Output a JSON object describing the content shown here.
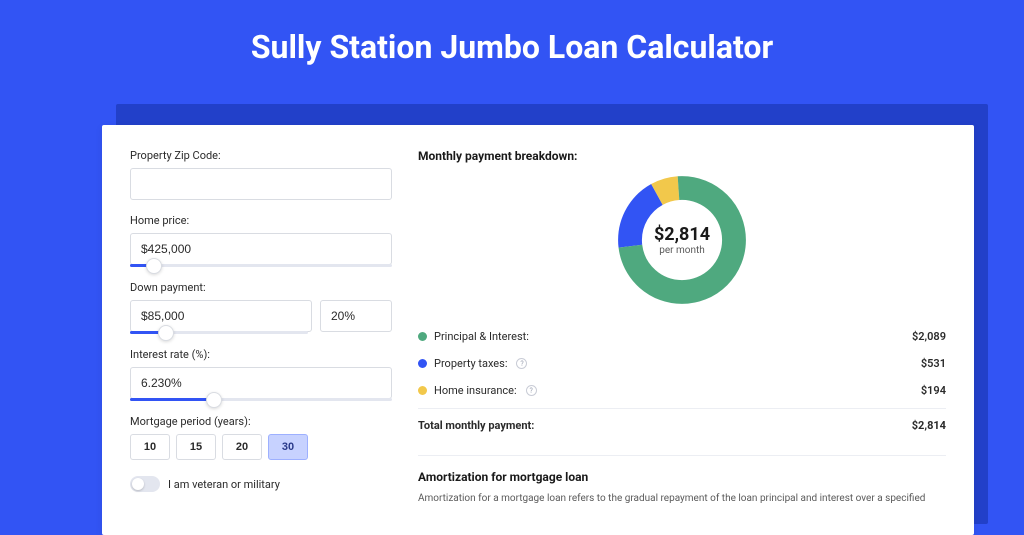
{
  "page": {
    "title": "Sully Station Jumbo Loan Calculator",
    "background_color": "#3254f4",
    "shadow_color": "#2240c9"
  },
  "form": {
    "zip": {
      "label": "Property Zip Code:",
      "value": ""
    },
    "home_price": {
      "label": "Home price:",
      "value": "$425,000",
      "slider_percent": 9
    },
    "down_payment": {
      "label": "Down payment:",
      "amount": "$85,000",
      "percent": "20%",
      "slider_percent": 20
    },
    "interest_rate": {
      "label": "Interest rate (%):",
      "value": "6.230%",
      "slider_percent": 32
    },
    "mortgage_period": {
      "label": "Mortgage period (years):",
      "options": [
        "10",
        "15",
        "20",
        "30"
      ],
      "selected_index": 3
    },
    "veteran": {
      "label": "I am veteran or military",
      "checked": false
    }
  },
  "breakdown": {
    "title": "Monthly payment breakdown:",
    "donut": {
      "type": "donut",
      "center_value": "$2,814",
      "center_sub": "per month",
      "radius": 48,
      "stroke_width": 22,
      "background": "#ffffff",
      "slices": [
        {
          "label": "Principal & Interest:",
          "value": "$2,089",
          "percent": 74.2,
          "color": "#4fa97f",
          "has_info": false
        },
        {
          "label": "Property taxes:",
          "value": "$531",
          "percent": 18.9,
          "color": "#3254f4",
          "has_info": true
        },
        {
          "label": "Home insurance:",
          "value": "$194",
          "percent": 6.9,
          "color": "#f2c84b",
          "has_info": true
        }
      ],
      "total": {
        "label": "Total monthly payment:",
        "value": "$2,814"
      }
    }
  },
  "amortization": {
    "title": "Amortization for mortgage loan",
    "text": "Amortization for a mortgage loan refers to the gradual repayment of the loan principal and interest over a specified"
  }
}
